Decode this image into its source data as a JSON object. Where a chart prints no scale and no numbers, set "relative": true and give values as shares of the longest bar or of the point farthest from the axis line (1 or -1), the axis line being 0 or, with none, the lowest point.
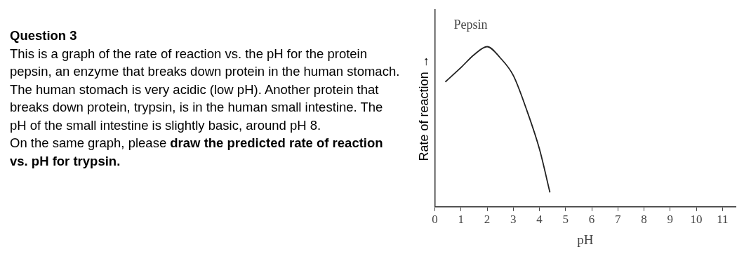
{
  "chart_data": {
    "type": "line",
    "title": "Question 3",
    "subtitle": "This is a graph of the rate of reaction vs. the pH for the protein pepsin, an enzyme that breaks down protein in the human stomach. The human stomach is very acidic (low pH). Another protein that breaks down protein, trypsin, is in the human small intestine. The pH of the small intestine is slightly basic, around pH 8.",
    "annotations": [
      "On the same graph, please",
      "draw the predicted rate of reaction vs. pH for trypsin."
    ],
    "xlabel": "pH",
    "ylabel": "Rate of reaction →",
    "relative": true,
    "grid": false,
    "legend": false,
    "marker": "none",
    "line_style": "solid",
    "xlim": [
      0,
      11.5
    ],
    "xticks": [
      0,
      1,
      2,
      3,
      4,
      5,
      6,
      7,
      8,
      9,
      10,
      11
    ],
    "series": [
      {
        "name": "Pepsin",
        "color": "#222222",
        "x": [
          0.4,
          1,
          1.5,
          2,
          2.5,
          3,
          3.5,
          4,
          4.4
        ],
        "values": [
          0.78,
          0.87,
          0.95,
          1,
          0.93,
          0.82,
          0.61,
          0.36,
          0.09
        ]
      }
    ]
  }
}
